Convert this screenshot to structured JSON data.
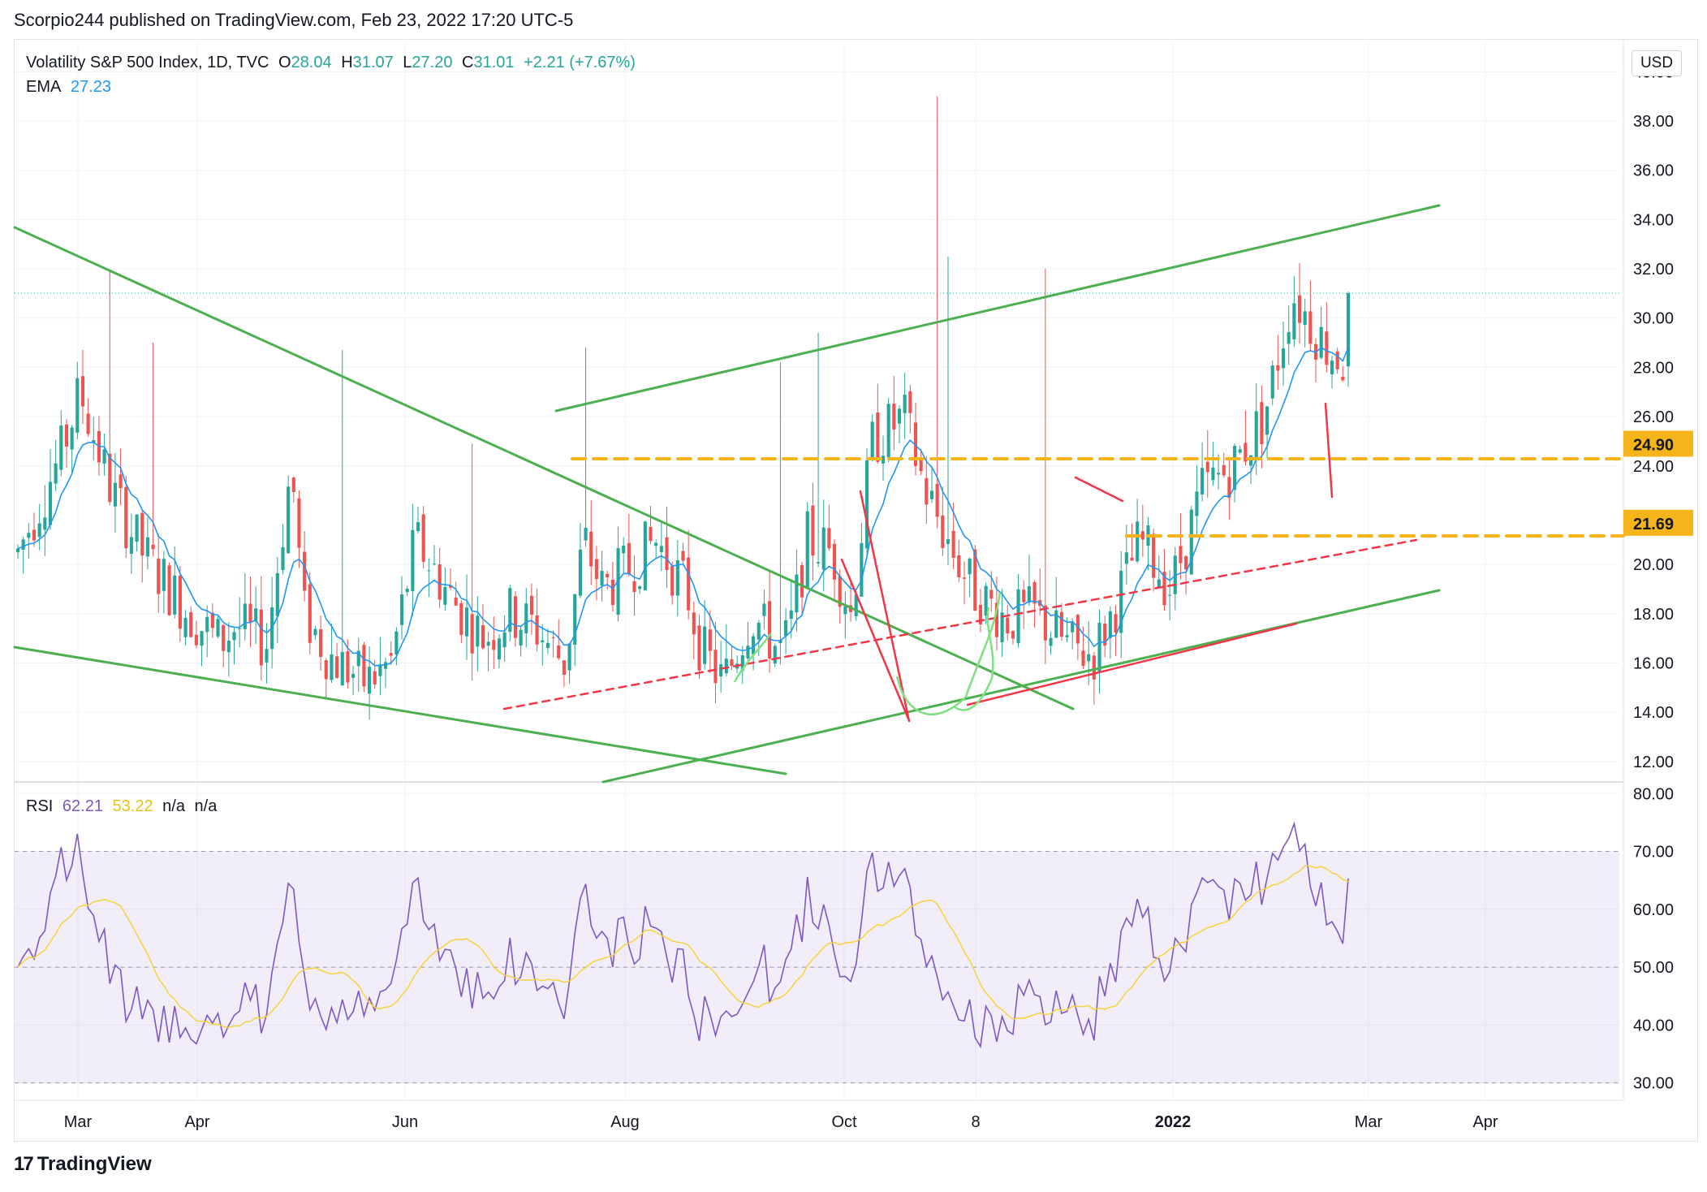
{
  "header": {
    "publisher": "Scorpio244 published on TradingView.com, Feb 23, 2022 17:20 UTC-5"
  },
  "footer": {
    "brand": "TradingView",
    "logo_mark": "17"
  },
  "toolbar": {
    "currency": "USD"
  },
  "legend": {
    "symbol": "Volatility S&P 500 Index, 1D, TVC",
    "o_label": "O",
    "o_value": "28.04",
    "h_label": "H",
    "h_value": "31.07",
    "l_label": "L",
    "l_value": "27.20",
    "c_label": "C",
    "c_value": "31.01",
    "change": "+2.21 (+7.67%)",
    "ema_label": "EMA",
    "ema_value": "27.23",
    "rsi_label": "RSI",
    "rsi_value": "62.21",
    "rsi_ma_value": "53.22",
    "na1": "n/a",
    "na2": "n/a"
  },
  "colors": {
    "up": "#26a69a",
    "down": "#ef5350",
    "ema": "#2196f3",
    "rsi": "#7e57c2",
    "rsi_ma": "#f5d33d",
    "trend_green": "#4caf50",
    "trend_red": "#f23645",
    "level": "#f5b41a",
    "rsi_band": "#7e57c2"
  },
  "chart_data": [
    {
      "type": "candlestick",
      "title": "Volatility S&P 500 Index, 1D, TVC",
      "currency": "USD",
      "x_ticks": [
        "Mar",
        "Apr",
        "Jun",
        "Aug",
        "Oct",
        "8",
        "2022",
        "Mar",
        "Apr"
      ],
      "y_ticks": [
        "40.00",
        "38.00",
        "36.00",
        "34.00",
        "32.00",
        "30.00",
        "28.00",
        "26.00",
        "24.00",
        "20.00",
        "18.00",
        "16.00",
        "14.00",
        "12.00"
      ],
      "ylim": [
        11.5,
        41
      ],
      "grid": true,
      "last_close_line": 31.01,
      "levels": [
        {
          "value": 24.9,
          "label": "24.90"
        },
        {
          "value": 21.69,
          "label": "21.69"
        }
      ],
      "series": [
        {
          "name": "EMA",
          "value": "27.23"
        }
      ]
    },
    {
      "type": "line",
      "title": "RSI",
      "y_ticks": [
        "80.00",
        "70.00",
        "60.00",
        "50.00",
        "40.00",
        "30.00"
      ],
      "ylim": [
        27,
        82
      ],
      "band": [
        30,
        70
      ],
      "series": [
        {
          "name": "RSI",
          "value": "62.21"
        },
        {
          "name": "RSI MA",
          "value": "53.22"
        }
      ]
    }
  ]
}
